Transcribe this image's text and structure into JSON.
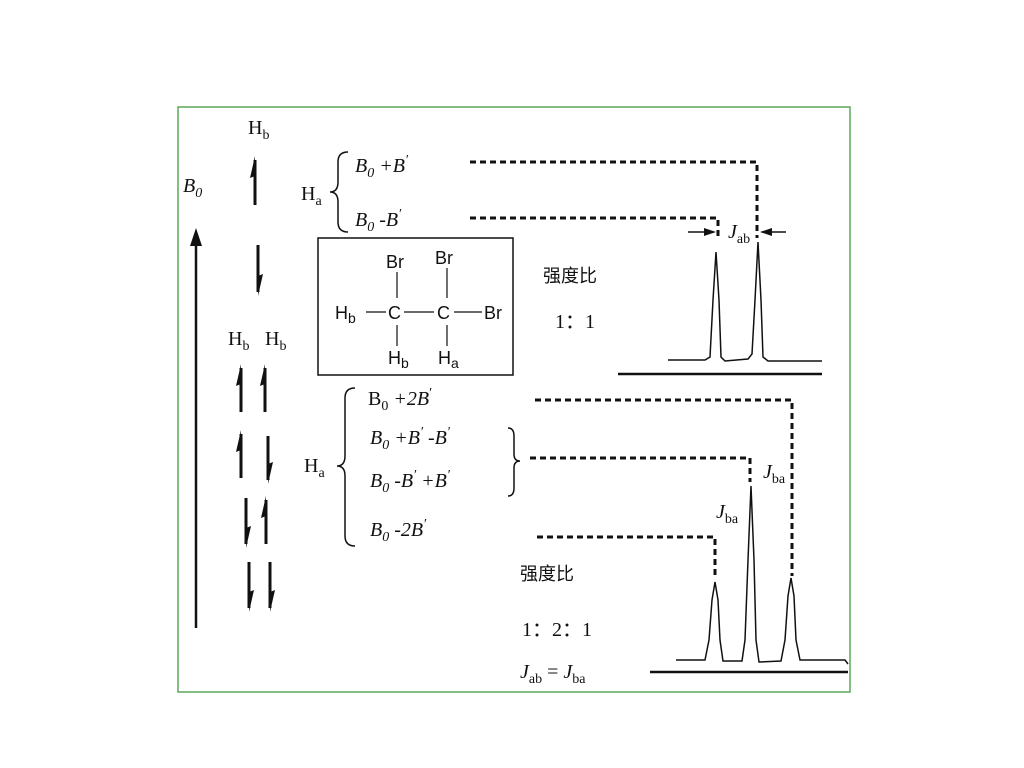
{
  "labels": {
    "b0_axis": "B",
    "b0_axis_sub": "0",
    "hb": "H",
    "hb_sub": "b",
    "ha": "H",
    "ha_sub": "a"
  },
  "top_levels": {
    "plus": {
      "b": "B",
      "sub": "0",
      "rest": " +B",
      "prime": "′"
    },
    "minus": {
      "b": "B",
      "sub": "0",
      "rest": " -B",
      "prime": "′"
    }
  },
  "molecule": {
    "br": "Br",
    "c": "C",
    "h": "H",
    "sub_b": "b",
    "sub_a": "a"
  },
  "top_spectrum": {
    "ratio_label": "强度比",
    "ratio": "1：1",
    "j_main": "J",
    "j_sub": "ab"
  },
  "bottom_levels": {
    "l1": {
      "b": "B",
      "sub": "0",
      "rest": "  +2B",
      "prime": "′"
    },
    "l2": {
      "b": "B",
      "sub": "0",
      "rest": " +B",
      "p1": "′",
      "rest2": "  -B",
      "p2": "′"
    },
    "l3": {
      "b": "B",
      "sub": "0",
      "rest": " -B",
      "p1": "′",
      "rest2": "  +B",
      "p2": "′"
    },
    "l4": {
      "b": "B",
      "sub": "0",
      "rest": "  -2B",
      "prime": "′"
    }
  },
  "bottom_spectrum": {
    "j_main": "J",
    "j_sub": "ba",
    "ratio_label": "强度比",
    "ratio": "1：2：1",
    "eq_j1": "J",
    "eq_j1_sub": "ab",
    "eq_mid": " = ",
    "eq_j2": "J",
    "eq_j2_sub": "ba"
  },
  "colors": {
    "frame_border": "#5aa85a",
    "ink": "#111111"
  }
}
